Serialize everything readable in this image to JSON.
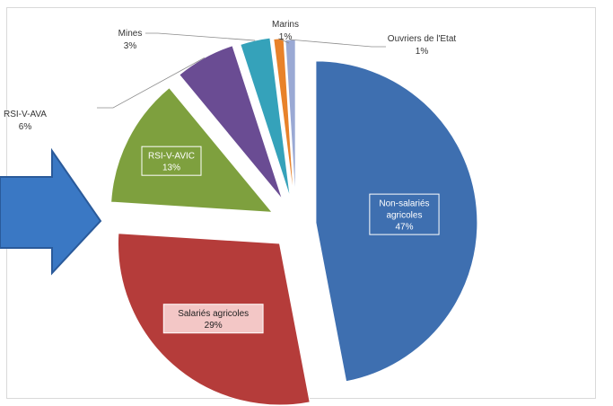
{
  "chart_data": {
    "type": "pie",
    "exploded": true,
    "slices": [
      {
        "name": "Non-salariés agricoles",
        "label_lines": [
          "Non-salariés",
          "agricoles"
        ],
        "pct_label": "47%",
        "value": 47,
        "color": "#3e6fb0",
        "label_placement": "inside"
      },
      {
        "name": "Salariés agricoles",
        "label_lines": [
          "Salariés agricoles"
        ],
        "pct_label": "29%",
        "value": 29,
        "color": "#b53c3a",
        "label_placement": "inside"
      },
      {
        "name": "RSI-V-AVIC",
        "label_lines": [
          "RSI-V-AVIC"
        ],
        "pct_label": "13%",
        "value": 13,
        "color": "#7ea03e",
        "label_placement": "inside"
      },
      {
        "name": "RSI-V-AVA",
        "label_lines": [
          "RSI-V-AVA"
        ],
        "pct_label": "6%",
        "value": 6,
        "color": "#6a4c93",
        "label_placement": "outside"
      },
      {
        "name": "Mines",
        "label_lines": [
          "Mines"
        ],
        "pct_label": "3%",
        "value": 3,
        "color": "#35a2ba",
        "label_placement": "outside"
      },
      {
        "name": "Marins",
        "label_lines": [
          "Marins"
        ],
        "pct_label": "1%",
        "value": 1,
        "color": "#e8822a",
        "label_placement": "outside"
      },
      {
        "name": "Ouvriers de l'Etat",
        "label_lines": [
          "Ouvriers de l'Etat"
        ],
        "pct_label": "1%",
        "value": 1,
        "color": "#9aa9d4",
        "label_placement": "outside"
      }
    ],
    "legend": "none"
  },
  "arrow": {
    "color": "#3a78c4",
    "outline": "#2a5a9a",
    "direction": "right"
  }
}
